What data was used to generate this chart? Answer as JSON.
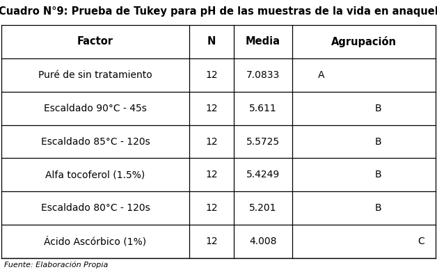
{
  "title": "Cuadro N°9: Prueba de Tukey para pH de las muestras de la vida en anaquel",
  "headers": [
    "Factor",
    "N",
    "Media",
    "Agrupación"
  ],
  "rows": [
    [
      "Puré de sin tratamiento",
      "12",
      "7.0833",
      "A",
      "",
      ""
    ],
    [
      "Escaldado 90°C - 45s",
      "12",
      "5.611",
      "",
      "B",
      ""
    ],
    [
      "Escaldado 85°C - 120s",
      "12",
      "5.5725",
      "",
      "B",
      ""
    ],
    [
      "Alfa tocoferol (1.5%)",
      "12",
      "5.4249",
      "",
      "B",
      ""
    ],
    [
      "Escaldado 80°C - 120s",
      "12",
      "5.201",
      "",
      "B",
      ""
    ],
    [
      "Ácido Ascórbico (1%)",
      "12",
      "4.008",
      "",
      "",
      "C"
    ]
  ],
  "background_color": "#ffffff",
  "title_fontsize": 10.5,
  "header_fontsize": 10.5,
  "cell_fontsize": 10.0,
  "footer_fontsize": 8.0
}
